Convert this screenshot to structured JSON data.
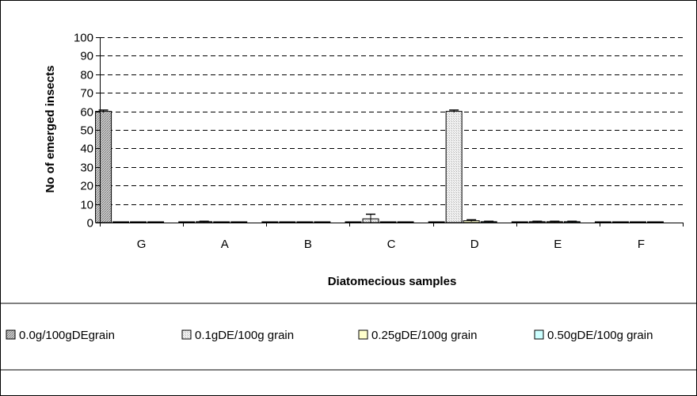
{
  "chart_data": {
    "type": "bar",
    "title": "",
    "xlabel": "Diatomecious samples",
    "ylabel": "No of emerged insects",
    "categories": [
      "G",
      "A",
      "B",
      "C",
      "D",
      "E",
      "F"
    ],
    "ylim": [
      0,
      100
    ],
    "yticks": [
      0,
      10,
      20,
      30,
      40,
      50,
      60,
      70,
      80,
      90,
      100
    ],
    "grid": true,
    "legend_position": "bottom",
    "series": [
      {
        "name": "0.0g/100gDEgrain",
        "values": [
          60,
          0,
          0,
          0,
          0,
          0,
          0
        ],
        "errors": [
          0.7,
          0,
          0,
          0,
          0,
          0,
          0
        ],
        "color": "#b4b4b4",
        "pattern": "dense-dots"
      },
      {
        "name": "0.1gDE/100g grain",
        "values": [
          0,
          0.5,
          0,
          2,
          60,
          0.5,
          0
        ],
        "errors": [
          0,
          0.2,
          0,
          2.5,
          0.7,
          0.2,
          0
        ],
        "color": "#e6e6e6",
        "pattern": "light-dots"
      },
      {
        "name": "0.25gDE/100g grain",
        "values": [
          0,
          0,
          0,
          0,
          1,
          0.5,
          0
        ],
        "errors": [
          0,
          0,
          0,
          0,
          0.5,
          0.2,
          0
        ],
        "color": "#ffffcc",
        "pattern": "solid"
      },
      {
        "name": "0.50gDE/100g grain",
        "values": [
          0,
          0,
          0,
          0,
          0.5,
          0.5,
          0
        ],
        "errors": [
          0,
          0,
          0,
          0,
          0.2,
          0.2,
          0
        ],
        "color": "#ccffff",
        "pattern": "solid"
      }
    ]
  }
}
